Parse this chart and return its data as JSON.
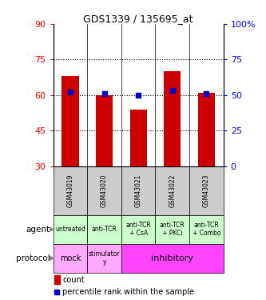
{
  "title": "GDS1339 / 135695_at",
  "samples": [
    "GSM43019",
    "GSM43020",
    "GSM43021",
    "GSM43022",
    "GSM43023"
  ],
  "bar_values": [
    68,
    60,
    54,
    70,
    61
  ],
  "percentile_values": [
    52,
    51,
    50,
    53,
    51
  ],
  "bar_color": "#cc0000",
  "dot_color": "#0000cc",
  "left_ylim": [
    30,
    90
  ],
  "right_ylim": [
    0,
    100
  ],
  "left_yticks": [
    30,
    45,
    60,
    75,
    90
  ],
  "right_yticks": [
    0,
    25,
    50,
    75,
    100
  ],
  "right_yticklabels": [
    "0",
    "25",
    "50",
    "75",
    "100%"
  ],
  "grid_values": [
    45,
    60,
    75
  ],
  "agent_labels": [
    "untreated",
    "anti-TCR",
    "anti-TCR\n+ CsA",
    "anti-TCR\n+ PKCi",
    "anti-TCR\n+ Combo"
  ],
  "agent_bg_color": "#ccffcc",
  "sample_bg_color": "#cccccc",
  "protocol_mock_color": "#ffaaff",
  "protocol_stimulatory_color": "#ffaaff",
  "protocol_inhibitory_color": "#ff44ff",
  "bar_bottom": 30,
  "figsize": [
    3.33,
    3.75
  ],
  "dpi": 100
}
